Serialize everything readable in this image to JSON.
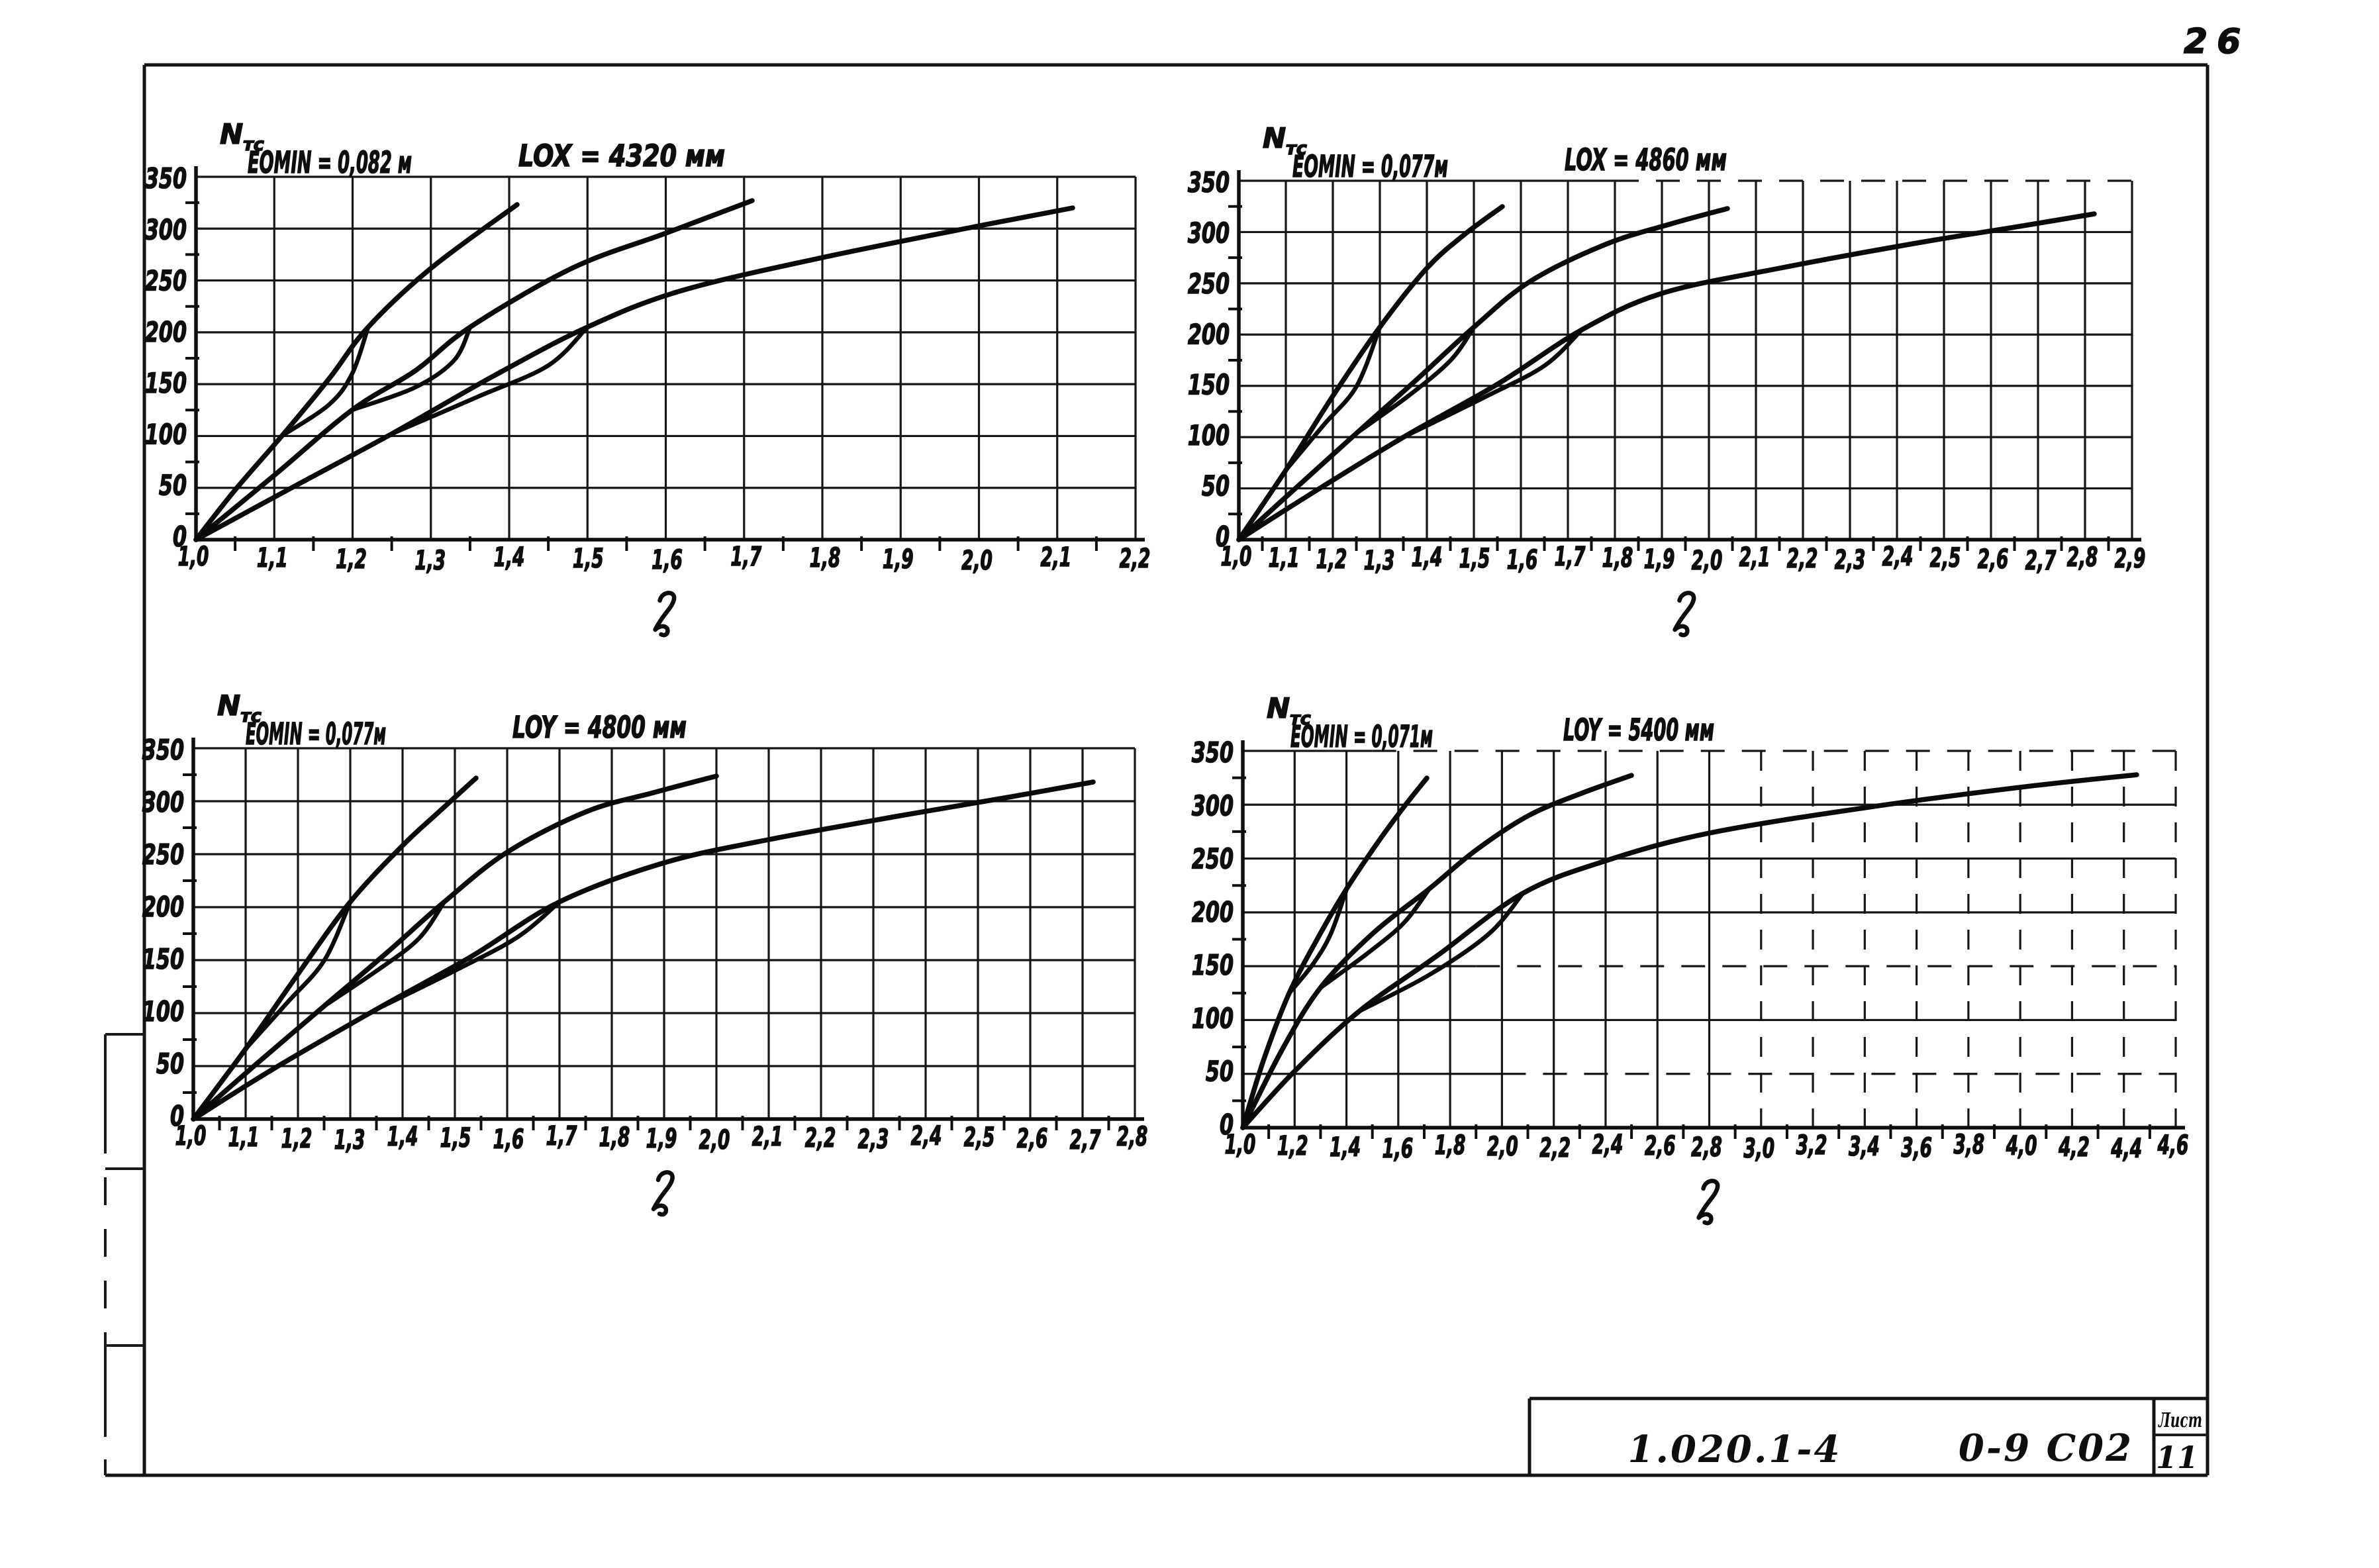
{
  "page": {
    "number": "26",
    "background_color": "#ffffff",
    "ink_color": "#111111"
  },
  "title_block": {
    "series_label": "1.020.1-4",
    "document_code": "0-9 С02",
    "sheet_caption": "Лист",
    "sheet_number": "11"
  },
  "chart_data": [
    {
      "type": "line",
      "title_left": "EOMIN = 0,082 м",
      "title_right": "LOX = 4320 мм",
      "ylabel_main": "N",
      "ylabel_sub": "тс",
      "xlabel": "ℓ",
      "xlim": [
        1.0,
        2.2
      ],
      "x_tick_step": 0.1,
      "ylim": [
        0,
        350
      ],
      "y_tick_step": 50,
      "grid": true,
      "x_tick_labels": [
        "1,0",
        "1,1",
        "1,2",
        "1,3",
        "1,4",
        "1,5",
        "1,6",
        "1,7",
        "1,8",
        "1,9",
        "2,0",
        "2,1",
        "2,2"
      ],
      "y_tick_labels": [
        "0",
        "50",
        "100",
        "150",
        "200",
        "250",
        "300",
        "350"
      ],
      "series": [
        {
          "name": "curve-1",
          "points": [
            [
              1.0,
              0
            ],
            [
              1.05,
              48
            ],
            [
              1.11,
              100
            ],
            [
              1.17,
              155
            ],
            [
              1.22,
              205
            ],
            [
              1.3,
              262
            ],
            [
              1.41,
              323
            ]
          ]
        },
        {
          "name": "curve-1-branch",
          "points": [
            [
              1.11,
              100
            ],
            [
              1.17,
              130
            ],
            [
              1.2,
              160
            ],
            [
              1.22,
              205
            ]
          ]
        },
        {
          "name": "curve-2",
          "points": [
            [
              1.0,
              0
            ],
            [
              1.1,
              62
            ],
            [
              1.2,
              125
            ],
            [
              1.28,
              163
            ],
            [
              1.35,
              205
            ],
            [
              1.48,
              262
            ],
            [
              1.6,
              296
            ],
            [
              1.71,
              327
            ]
          ]
        },
        {
          "name": "curve-2-branch",
          "points": [
            [
              1.2,
              125
            ],
            [
              1.28,
              147
            ],
            [
              1.33,
              173
            ],
            [
              1.35,
              205
            ]
          ]
        },
        {
          "name": "curve-3",
          "points": [
            [
              1.0,
              0
            ],
            [
              1.12,
              49
            ],
            [
              1.25,
              102
            ],
            [
              1.38,
              158
            ],
            [
              1.5,
              205
            ],
            [
              1.62,
              240
            ],
            [
              1.8,
              272
            ],
            [
              2.0,
              303
            ],
            [
              2.12,
              320
            ]
          ]
        },
        {
          "name": "curve-3-branch",
          "points": [
            [
              1.25,
              102
            ],
            [
              1.36,
              138
            ],
            [
              1.45,
              168
            ],
            [
              1.5,
              205
            ]
          ]
        }
      ]
    },
    {
      "type": "line",
      "title_left": "EOMIN = 0,077м",
      "title_right": "LOX = 4860 мм",
      "ylabel_main": "N",
      "ylabel_sub": "тс",
      "xlabel": "ℓ",
      "xlim": [
        1.0,
        2.9
      ],
      "x_tick_step": 0.1,
      "ylim": [
        0,
        350
      ],
      "y_tick_step": 50,
      "grid": true,
      "x_tick_labels": [
        "1,0",
        "1,1",
        "1,2",
        "1,3",
        "1,4",
        "1,5",
        "1,6",
        "1,7",
        "1,8",
        "1,9",
        "2,0",
        "2,1",
        "2,2",
        "2,3",
        "2,4",
        "2,5",
        "2,6",
        "2,7",
        "2,8",
        "2,9"
      ],
      "y_tick_labels": [
        "0",
        "50",
        "100",
        "150",
        "200",
        "250",
        "300",
        "350"
      ],
      "series": [
        {
          "name": "curve-1",
          "points": [
            [
              1.0,
              0
            ],
            [
              1.1,
              68
            ],
            [
              1.2,
              140
            ],
            [
              1.3,
              207
            ],
            [
              1.4,
              265
            ],
            [
              1.48,
              298
            ],
            [
              1.56,
              325
            ]
          ]
        },
        {
          "name": "curve-1-branch",
          "points": [
            [
              1.1,
              68
            ],
            [
              1.18,
              112
            ],
            [
              1.25,
              150
            ],
            [
              1.3,
              207
            ]
          ]
        },
        {
          "name": "curve-2",
          "points": [
            [
              1.0,
              0
            ],
            [
              1.12,
              50
            ],
            [
              1.25,
              104
            ],
            [
              1.38,
              157
            ],
            [
              1.5,
              207
            ],
            [
              1.62,
              252
            ],
            [
              1.78,
              288
            ],
            [
              1.92,
              308
            ],
            [
              2.04,
              323
            ]
          ]
        },
        {
          "name": "curve-2-branch",
          "points": [
            [
              1.25,
              104
            ],
            [
              1.36,
              140
            ],
            [
              1.45,
              175
            ],
            [
              1.5,
              207
            ]
          ]
        },
        {
          "name": "curve-3",
          "points": [
            [
              1.0,
              0
            ],
            [
              1.15,
              44
            ],
            [
              1.35,
              100
            ],
            [
              1.55,
              152
            ],
            [
              1.73,
              205
            ],
            [
              1.9,
              240
            ],
            [
              2.15,
              265
            ],
            [
              2.45,
              290
            ],
            [
              2.65,
              305
            ],
            [
              2.82,
              318
            ]
          ]
        },
        {
          "name": "curve-3-branch",
          "points": [
            [
              1.35,
              100
            ],
            [
              1.52,
              138
            ],
            [
              1.65,
              170
            ],
            [
              1.73,
              205
            ]
          ]
        }
      ]
    },
    {
      "type": "line",
      "title_left": "EOMIN = 0,077м",
      "title_right": "LOY = 4800 мм",
      "ylabel_main": "N",
      "ylabel_sub": "тс",
      "xlabel": "ℓ",
      "xlim": [
        1.0,
        2.8
      ],
      "x_tick_step": 0.1,
      "ylim": [
        0,
        350
      ],
      "y_tick_step": 50,
      "grid": true,
      "x_tick_labels": [
        "1,0",
        "1,1",
        "1,2",
        "1,3",
        "1,4",
        "1,5",
        "1,6",
        "1,7",
        "1,8",
        "1,9",
        "2,0",
        "2,1",
        "2,2",
        "2,3",
        "2,4",
        "2,5",
        "2,6",
        "2,7",
        "2,8"
      ],
      "y_tick_labels": [
        "0",
        "50",
        "100",
        "150",
        "200",
        "250",
        "300",
        "350"
      ],
      "series": [
        {
          "name": "curve-1",
          "points": [
            [
              1.0,
              0
            ],
            [
              1.1,
              66
            ],
            [
              1.2,
              137
            ],
            [
              1.3,
              205
            ],
            [
              1.4,
              258
            ],
            [
              1.47,
              290
            ],
            [
              1.54,
              322
            ]
          ]
        },
        {
          "name": "curve-1-branch",
          "points": [
            [
              1.1,
              66
            ],
            [
              1.18,
              110
            ],
            [
              1.25,
              150
            ],
            [
              1.3,
              205
            ]
          ]
        },
        {
          "name": "curve-2",
          "points": [
            [
              1.0,
              0
            ],
            [
              1.12,
              52
            ],
            [
              1.25,
              107
            ],
            [
              1.37,
              157
            ],
            [
              1.48,
              205
            ],
            [
              1.6,
              252
            ],
            [
              1.75,
              290
            ],
            [
              1.88,
              308
            ],
            [
              2.0,
              324
            ]
          ]
        },
        {
          "name": "curve-2-branch",
          "points": [
            [
              1.25,
              107
            ],
            [
              1.35,
              140
            ],
            [
              1.43,
              170
            ],
            [
              1.48,
              205
            ]
          ]
        },
        {
          "name": "curve-3",
          "points": [
            [
              1.0,
              0
            ],
            [
              1.15,
              46
            ],
            [
              1.35,
              104
            ],
            [
              1.53,
              153
            ],
            [
              1.7,
              205
            ],
            [
              1.9,
              242
            ],
            [
              2.1,
              264
            ],
            [
              2.35,
              286
            ],
            [
              2.55,
              303
            ],
            [
              2.72,
              318
            ]
          ]
        },
        {
          "name": "curve-3-branch",
          "points": [
            [
              1.35,
              104
            ],
            [
              1.5,
              140
            ],
            [
              1.62,
              172
            ],
            [
              1.7,
              205
            ]
          ]
        }
      ]
    },
    {
      "type": "line",
      "title_left": "EOMIN = 0,071м",
      "title_right": "LOY = 5400 мм",
      "ylabel_main": "N",
      "ylabel_sub": "тс",
      "xlabel": "ℓ",
      "xlim": [
        1.0,
        4.6
      ],
      "x_tick_step": 0.2,
      "ylim": [
        0,
        350
      ],
      "y_tick_step": 50,
      "grid": true,
      "x_tick_labels": [
        "1,0",
        "1,2",
        "1,4",
        "1,6",
        "1,8",
        "2,0",
        "2,2",
        "2,4",
        "2,6",
        "2,8",
        "3,0",
        "3,2",
        "3,4",
        "3,6",
        "3,8",
        "4,0",
        "4,2",
        "4,4",
        "4,6"
      ],
      "y_tick_labels": [
        "0",
        "50",
        "100",
        "150",
        "200",
        "250",
        "300",
        "350"
      ],
      "series": [
        {
          "name": "curve-1",
          "points": [
            [
              1.0,
              0
            ],
            [
              1.08,
              62
            ],
            [
              1.18,
              125
            ],
            [
              1.3,
              180
            ],
            [
              1.4,
              222
            ],
            [
              1.52,
              265
            ],
            [
              1.62,
              298
            ],
            [
              1.71,
              325
            ]
          ]
        },
        {
          "name": "curve-1-branch",
          "points": [
            [
              1.18,
              125
            ],
            [
              1.27,
              152
            ],
            [
              1.34,
              180
            ],
            [
              1.4,
              222
            ]
          ]
        },
        {
          "name": "curve-2",
          "points": [
            [
              1.0,
              0
            ],
            [
              1.15,
              72
            ],
            [
              1.3,
              130
            ],
            [
              1.5,
              180
            ],
            [
              1.72,
              222
            ],
            [
              1.9,
              258
            ],
            [
              2.1,
              290
            ],
            [
              2.3,
              310
            ],
            [
              2.5,
              327
            ]
          ]
        },
        {
          "name": "curve-2-branch",
          "points": [
            [
              1.3,
              130
            ],
            [
              1.48,
              162
            ],
            [
              1.62,
              190
            ],
            [
              1.72,
              222
            ]
          ]
        },
        {
          "name": "curve-3",
          "points": [
            [
              1.0,
              0
            ],
            [
              1.2,
              52
            ],
            [
              1.45,
              108
            ],
            [
              1.75,
              160
            ],
            [
              2.08,
              218
            ],
            [
              2.4,
              248
            ],
            [
              2.8,
              274
            ],
            [
              3.4,
              297
            ],
            [
              4.0,
              316
            ],
            [
              4.45,
              328
            ]
          ]
        },
        {
          "name": "curve-3-branch",
          "points": [
            [
              1.45,
              108
            ],
            [
              1.72,
              142
            ],
            [
              1.95,
              180
            ],
            [
              2.08,
              218
            ]
          ]
        }
      ]
    }
  ]
}
